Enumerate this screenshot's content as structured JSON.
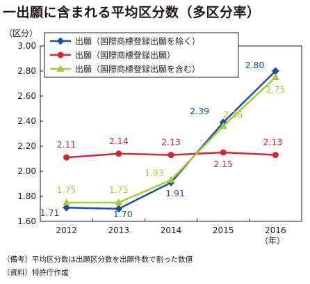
{
  "title": "一出願に含まれる平均区分数（多区分率）",
  "notes": {
    "remark": "（備考）平均区分数は出願区分数を出願件数で割った数値",
    "source": "（資料）特許庁作成"
  },
  "chart_data": {
    "type": "line",
    "x": [
      "2012",
      "2013",
      "2014",
      "2015",
      "2016"
    ],
    "xlabel_unit": "（年）",
    "ylabel": "（区分）",
    "ylim": [
      1.6,
      3.0
    ],
    "yticks": [
      "1.60",
      "1.80",
      "2.00",
      "2.20",
      "2.40",
      "2.60",
      "2.80",
      "3.00"
    ],
    "grid": "none",
    "legend": "top-left",
    "series": [
      {
        "name": "出願（国際商標登録出願を除く）",
        "values": [
          1.71,
          1.7,
          1.91,
          2.39,
          2.8
        ],
        "labels": [
          "1.71",
          "1.70",
          "1.91",
          "2.39",
          "2.80"
        ],
        "color": "#1d4fa0",
        "marker": "diamond"
      },
      {
        "name": "出願（国際商標登録出願）",
        "values": [
          2.11,
          2.14,
          2.13,
          2.15,
          2.13
        ],
        "labels": [
          "2.11",
          "2.14",
          "2.13",
          "2.15",
          "2.13"
        ],
        "color": "#d7262e",
        "marker": "circle"
      },
      {
        "name": "出願（国際商標登録出願を含む）",
        "values": [
          1.75,
          1.75,
          1.93,
          2.36,
          2.75
        ],
        "labels": [
          "1.75",
          "1.75",
          "1.93",
          "2.36",
          "2.75"
        ],
        "color": "#a7c93c",
        "marker": "triangle"
      }
    ]
  }
}
